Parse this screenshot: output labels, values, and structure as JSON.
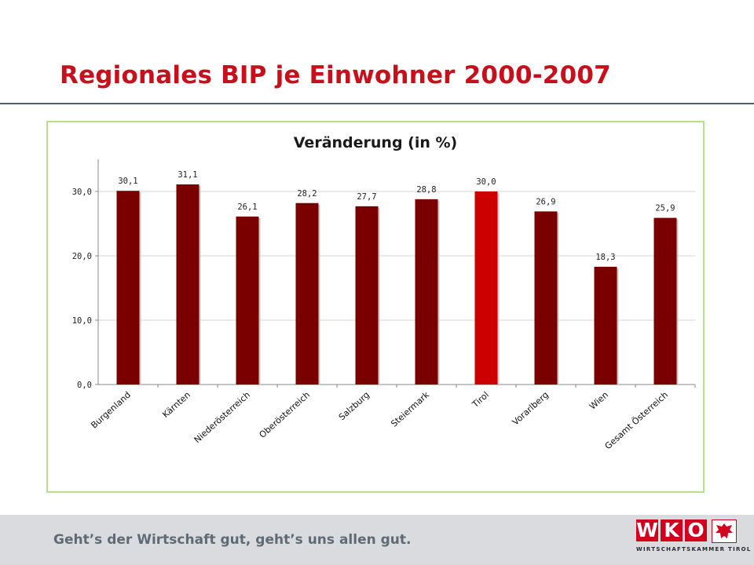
{
  "slide": {
    "title": "Regionales BIP je Einwohner 2000-2007"
  },
  "footer": {
    "slogan": "Geht’s der Wirtschaft gut, geht’s uns allen gut.",
    "logo_text": "WKO",
    "logo_subtitle": "WIRTSCHAFTSKAMMER TIROL",
    "logo_icon": "tyrolean-eagle-icon"
  },
  "colors": {
    "title": "#c8101c",
    "bar": "#7a0000",
    "bar_highlight": "#cc0000",
    "frame_border": "#b5e08c",
    "footer_band": "#d9dbde",
    "logo_red": "#d2001e"
  },
  "chart_data": {
    "type": "bar",
    "title": "Veränderung (in %)",
    "categories": [
      "Burgenland",
      "Kärnten",
      "Niederösterreich",
      "Oberösterreich",
      "Salzburg",
      "Steiermark",
      "Tirol",
      "Vorarlberg",
      "Wien",
      "Gesamt Österreich"
    ],
    "values": [
      30.1,
      31.1,
      26.1,
      28.2,
      27.7,
      28.8,
      30.0,
      26.9,
      18.3,
      25.9
    ],
    "value_labels": [
      "30,1",
      "31,1",
      "26,1",
      "28,2",
      "27,7",
      "28,8",
      "30,0",
      "26,9",
      "18,3",
      "25,9"
    ],
    "highlight_category": "Tirol",
    "ylim": [
      0,
      35
    ],
    "yticks": [
      0,
      10,
      20,
      30
    ],
    "ytick_labels": [
      "0,0",
      "10,0",
      "20,0",
      "30,0"
    ],
    "xlabel": "",
    "ylabel": "",
    "grid": true,
    "legend": "none"
  }
}
